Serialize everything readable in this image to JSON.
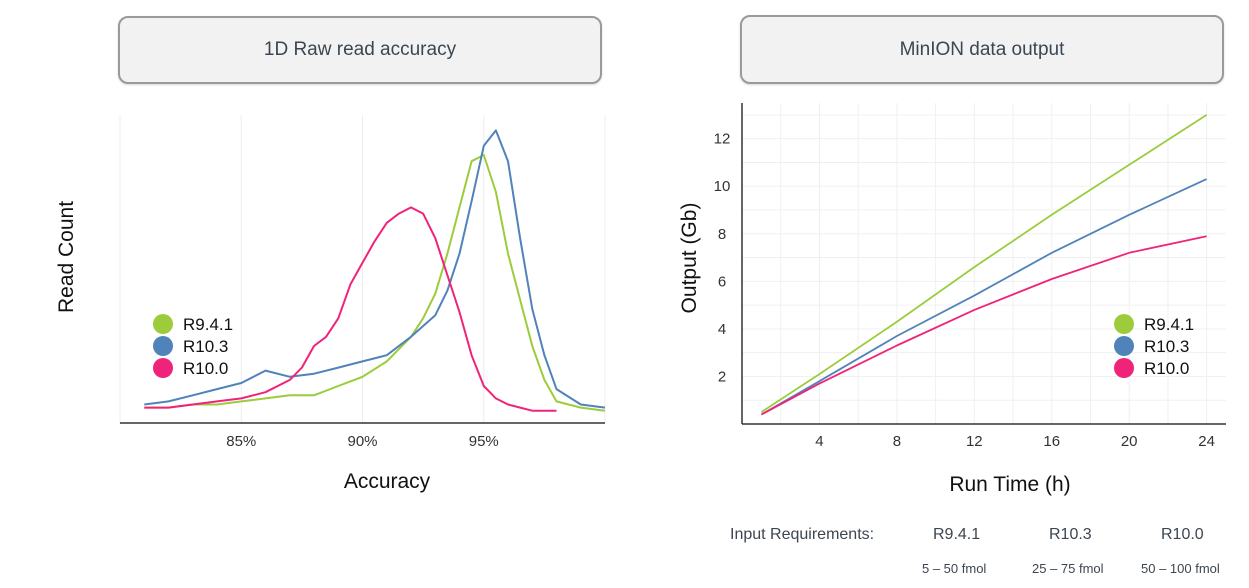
{
  "tabs": {
    "left": "1D Raw read accuracy",
    "right": "MinION data output"
  },
  "colors": {
    "R9.4.1": "#9ccc3c",
    "R10.3": "#4f83b9",
    "R10.0": "#f0237a"
  },
  "chart_data": [
    {
      "type": "line",
      "title": "",
      "xlabel": "Accuracy",
      "ylabel": "Read Count",
      "x_ticks": [
        "85%",
        "90%",
        "95%"
      ],
      "xlim": [
        80,
        100
      ],
      "ylim": [
        0,
        100
      ],
      "legend": "center-left",
      "grid": "vertical",
      "series": [
        {
          "name": "R9.4.1",
          "x": [
            81,
            82,
            83,
            84,
            85,
            86,
            87,
            88,
            89,
            90,
            91,
            91.5,
            92,
            92.5,
            93,
            93.5,
            94,
            94.5,
            95,
            95.5,
            96,
            96.5,
            97,
            97.5,
            98,
            99,
            100
          ],
          "values": [
            5,
            5,
            6,
            6,
            7,
            8,
            9,
            9,
            12,
            15,
            20,
            24,
            28,
            34,
            42,
            55,
            70,
            85,
            87,
            75,
            55,
            40,
            25,
            14,
            7,
            5,
            4
          ]
        },
        {
          "name": "R10.3",
          "x": [
            81,
            82,
            83,
            84,
            85,
            86,
            87,
            88,
            89,
            90,
            91,
            92,
            93,
            93.5,
            94,
            94.5,
            95,
            95.5,
            96,
            96.5,
            97,
            97.5,
            98,
            99,
            100
          ],
          "values": [
            6,
            7,
            9,
            11,
            13,
            17,
            15,
            16,
            18,
            20,
            22,
            28,
            35,
            43,
            55,
            72,
            90,
            95,
            85,
            60,
            37,
            22,
            11,
            6,
            5
          ]
        },
        {
          "name": "R10.0",
          "x": [
            81,
            82,
            83,
            84,
            85,
            86,
            87,
            87.5,
            88,
            88.5,
            89,
            89.5,
            90,
            90.5,
            91,
            91.5,
            92,
            92.5,
            93,
            93.5,
            94,
            94.5,
            95,
            95.5,
            96,
            96.5,
            97,
            98
          ],
          "values": [
            5,
            5,
            6,
            7,
            8,
            10,
            14,
            18,
            25,
            28,
            34,
            45,
            52,
            59,
            65,
            68,
            70,
            68,
            60,
            48,
            36,
            22,
            12,
            8,
            6,
            5,
            4,
            4
          ]
        }
      ]
    },
    {
      "type": "line",
      "title": "",
      "xlabel": "Run Time (h)",
      "ylabel": "Output (Gb)",
      "x_ticks": [
        4,
        8,
        12,
        16,
        20,
        24
      ],
      "y_ticks": [
        2,
        4,
        6,
        8,
        10,
        12
      ],
      "xlim": [
        0,
        25
      ],
      "ylim": [
        0,
        13.5
      ],
      "legend": "center-right",
      "grid": "both",
      "series": [
        {
          "name": "R9.4.1",
          "x": [
            1,
            4,
            8,
            12,
            16,
            20,
            24
          ],
          "values": [
            0.5,
            2.1,
            4.3,
            6.6,
            8.8,
            10.9,
            13.0
          ]
        },
        {
          "name": "R10.3",
          "x": [
            1,
            4,
            8,
            12,
            16,
            20,
            24
          ],
          "values": [
            0.4,
            1.8,
            3.7,
            5.4,
            7.2,
            8.8,
            10.3
          ]
        },
        {
          "name": "R10.0",
          "x": [
            1,
            4,
            8,
            12,
            16,
            20,
            24
          ],
          "values": [
            0.4,
            1.7,
            3.3,
            4.8,
            6.1,
            7.2,
            7.9
          ]
        }
      ]
    }
  ],
  "requirements": {
    "label": "Input Requirements:",
    "columns": [
      {
        "name": "R9.4.1",
        "range": "5 – 50 fmol"
      },
      {
        "name": "R10.3",
        "range": "25 – 75 fmol"
      },
      {
        "name": "R10.0",
        "range": "50 – 100 fmol"
      }
    ]
  }
}
